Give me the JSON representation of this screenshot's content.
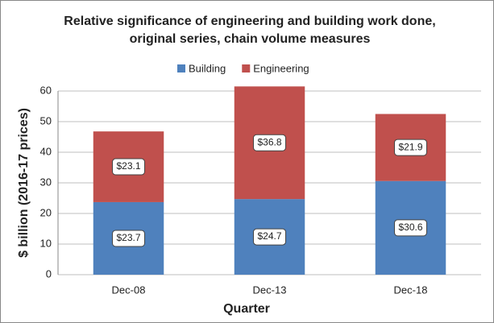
{
  "chart_data": {
    "type": "stacked_bar",
    "title": "Relative significance of engineering and building work done, original series, chain volume measures",
    "xlabel": "Quarter",
    "ylabel": "$ billion (2016-17 prices)",
    "categories": [
      "Dec-08",
      "Dec-13",
      "Dec-18"
    ],
    "series": [
      {
        "name": "Building",
        "color": "#4f81bd",
        "values": [
          23.7,
          24.7,
          30.6
        ],
        "value_labels": [
          "$23.7",
          "$24.7",
          "$30.6"
        ]
      },
      {
        "name": "Engineering",
        "color": "#c0504d",
        "values": [
          23.1,
          36.8,
          21.9
        ],
        "value_labels": [
          "$23.1",
          "$36.8",
          "$21.9"
        ]
      }
    ],
    "ylim": [
      0,
      60
    ],
    "yticks": [
      0,
      10,
      20,
      30,
      40,
      50,
      60
    ],
    "grid": true,
    "legend": "top"
  }
}
